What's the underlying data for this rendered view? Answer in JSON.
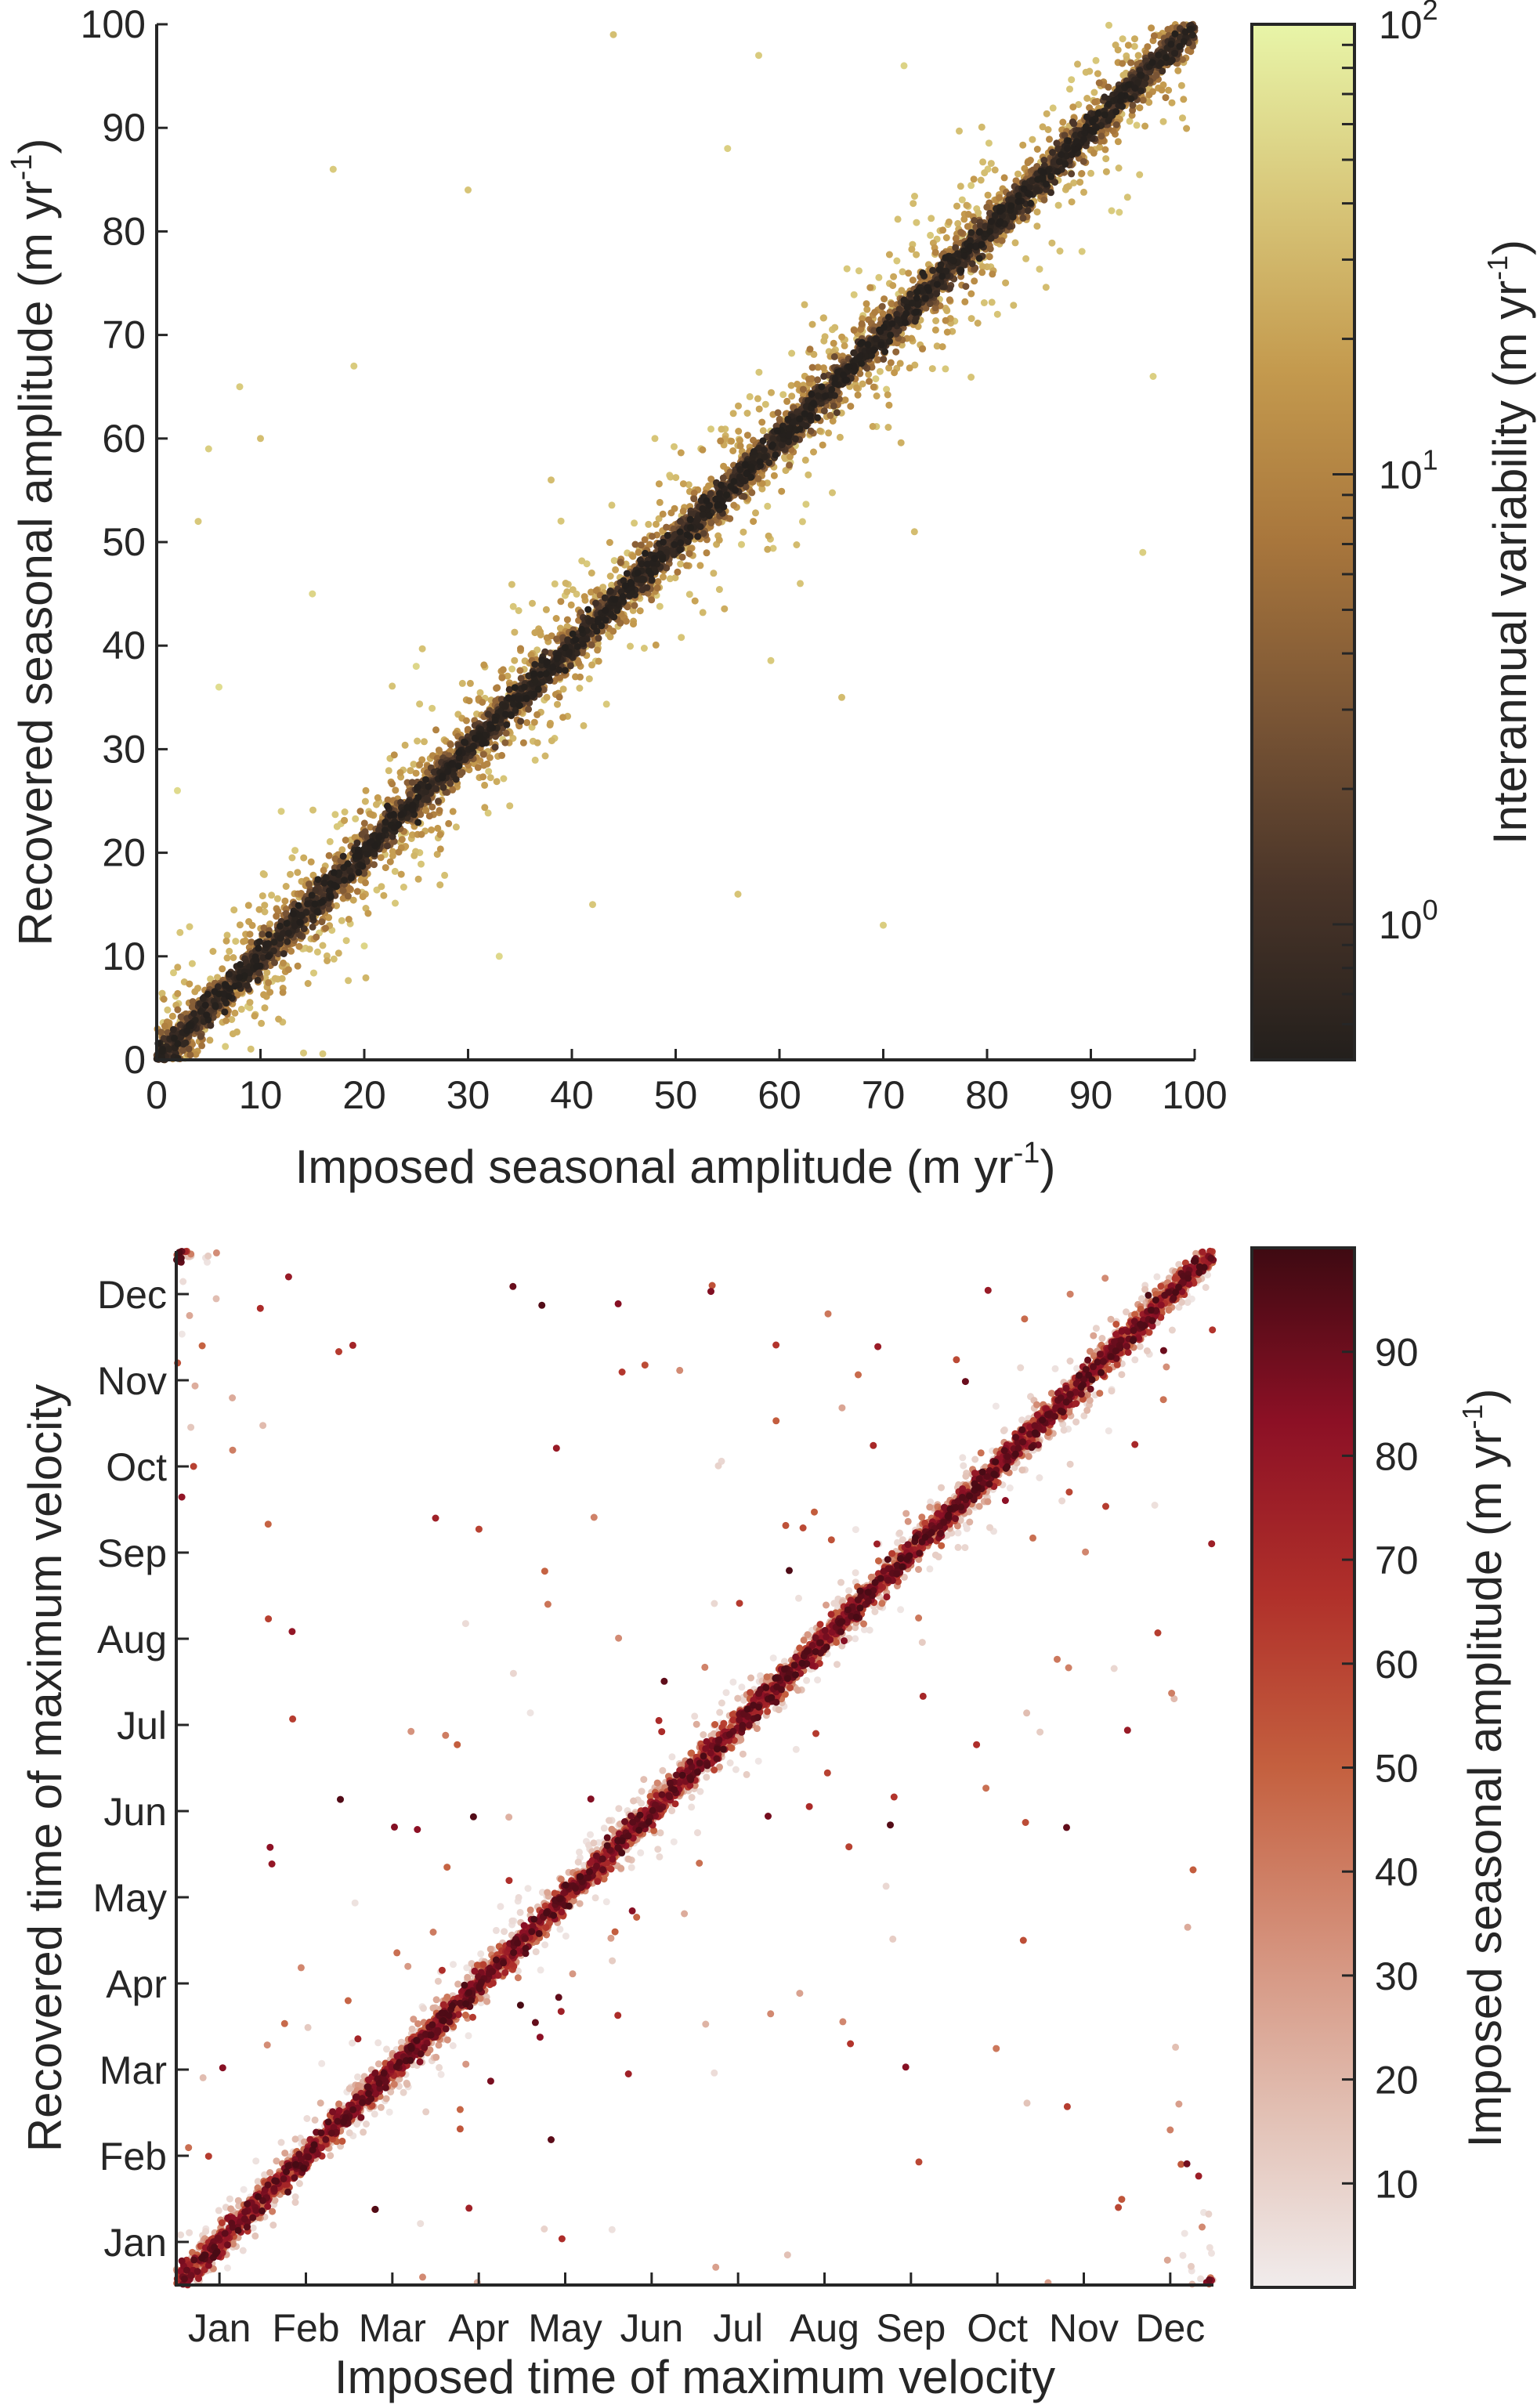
{
  "chart_data": [
    {
      "type": "scatter",
      "xlabel": {
        "main": "Imposed seasonal amplitude (m yr",
        "sup": "-1",
        "end": ")"
      },
      "ylabel": {
        "main": "Recovered seasonal amplitude (m yr",
        "sup": "-1",
        "end": ")"
      },
      "xlim": [
        0,
        100
      ],
      "ylim": [
        0,
        100
      ],
      "xticks": [
        "0",
        "10",
        "20",
        "30",
        "40",
        "50",
        "60",
        "70",
        "80",
        "90",
        "100"
      ],
      "yticks": [
        "0",
        "10",
        "20",
        "30",
        "40",
        "50",
        "60",
        "70",
        "80",
        "90",
        "100"
      ],
      "grid": false,
      "color_by": "interannual variability",
      "colorbar": {
        "label": {
          "main": "Interannual variability (m yr",
          "sup": "-1",
          "end": ")"
        },
        "scale": "log",
        "range": [
          0.5,
          100
        ],
        "ticks": [
          {
            "base": "10",
            "exp": "0",
            "value": 1
          },
          {
            "base": "10",
            "exp": "1",
            "value": 10
          },
          {
            "base": "10",
            "exp": "2",
            "value": 100
          }
        ],
        "colormap": [
          "#231f1c",
          "#4a3529",
          "#7a5535",
          "#a8763c",
          "#c49a4e",
          "#d8c77a",
          "#e8f5a8"
        ]
      },
      "trend": "points cluster tightly along the 1:1 line; scatter grows with interannual variability",
      "sample_points": [
        [
          4,
          52
        ],
        [
          5,
          59
        ],
        [
          8,
          65
        ],
        [
          10,
          60
        ],
        [
          17,
          86
        ],
        [
          19,
          67
        ],
        [
          12,
          24
        ],
        [
          30,
          84
        ],
        [
          44,
          99
        ],
        [
          55,
          88
        ],
        [
          58,
          97
        ],
        [
          72,
          96
        ],
        [
          73,
          51
        ],
        [
          70,
          13
        ],
        [
          56,
          16
        ],
        [
          42,
          15
        ],
        [
          20,
          11
        ],
        [
          33,
          10
        ],
        [
          62,
          46
        ],
        [
          96,
          66
        ],
        [
          95,
          49
        ],
        [
          92,
          82
        ],
        [
          2,
          26
        ],
        [
          6,
          36
        ],
        [
          15,
          45
        ],
        [
          25,
          38
        ],
        [
          38,
          56
        ],
        [
          48,
          60
        ],
        [
          66,
          35
        ],
        [
          81,
          72
        ]
      ]
    },
    {
      "type": "scatter",
      "xlabel": "Imposed time of maximum velocity",
      "ylabel": "Recovered time of maximum velocity",
      "xlim": [
        "Jan",
        "Dec"
      ],
      "ylim": [
        "Jan",
        "Dec"
      ],
      "xticks": [
        "Jan",
        "Feb",
        "Mar",
        "Apr",
        "May",
        "Jun",
        "Jul",
        "Aug",
        "Sep",
        "Oct",
        "Nov",
        "Dec"
      ],
      "yticks": [
        "Jan",
        "Feb",
        "Mar",
        "Apr",
        "May",
        "Jun",
        "Jul",
        "Aug",
        "Sep",
        "Oct",
        "Nov",
        "Dec"
      ],
      "grid": false,
      "color_by": "imposed seasonal amplitude",
      "colorbar": {
        "label": {
          "main": "Imposed seasonal amplitude (m yr",
          "sup": "-1",
          "end": ")"
        },
        "scale": "linear",
        "range": [
          0,
          100
        ],
        "ticks": [
          "10",
          "20",
          "30",
          "40",
          "50",
          "60",
          "70",
          "80",
          "90"
        ],
        "colormap": [
          "#f1ecec",
          "#e2c0b4",
          "#d4907a",
          "#c4603f",
          "#b0302a",
          "#8c1025",
          "#3e0a12"
        ]
      },
      "trend": "points lie along the 1:1 line (wrapping at year ends); scatter larger for small amplitudes",
      "sample_points": [
        [
          1.3,
          11.7
        ],
        [
          3.0,
          8.9
        ],
        [
          7.4,
          6.4
        ],
        [
          11.6,
          2.1
        ],
        [
          11.5,
          1.8
        ],
        [
          9.8,
          4.0
        ],
        [
          7.8,
          2.8
        ],
        [
          0.3,
          10.9
        ],
        [
          0.2,
          9.5
        ],
        [
          4.3,
          7.9
        ],
        [
          6.2,
          11.6
        ],
        [
          10.9,
          0.9
        ]
      ]
    }
  ]
}
